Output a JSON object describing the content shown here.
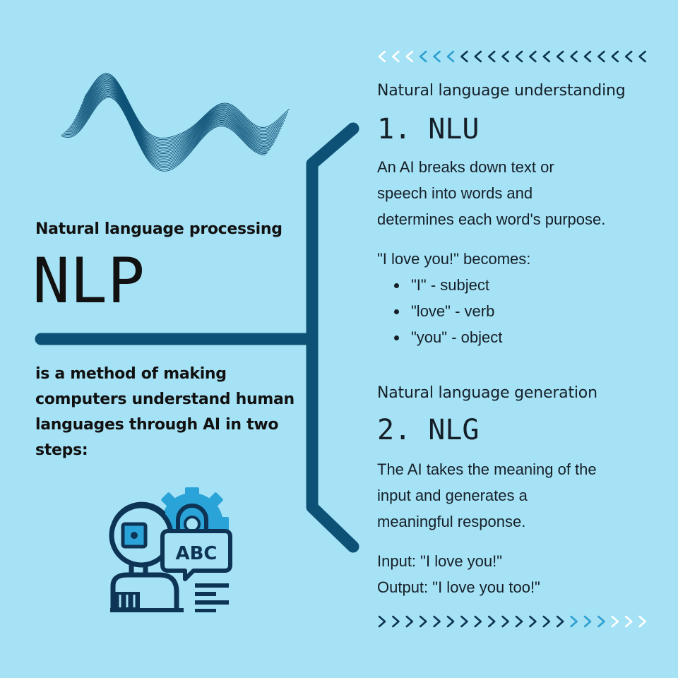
{
  "colors": {
    "background": "#a6e2f5",
    "brace": "#0d5176",
    "dark_navy": "#0e3455",
    "accent_blue": "#2aa3d8",
    "chevron_light": "#ffffff",
    "chevron_mid": "#2d9fd1"
  },
  "left": {
    "subtitle": "Natural language processing",
    "title": "NLP",
    "description": "is a method of making computers understand human languages through AI in two steps:"
  },
  "nlu": {
    "label": "Natural language understanding",
    "title": "1. NLU",
    "line1": "An AI breaks down text or",
    "line2": "speech into words and",
    "line3": "determines each word's purpose.",
    "example_intro": "\"I love you!\" becomes:",
    "bullets": [
      "\"I\" - subject",
      "\"love\" - verb",
      "\"you\" - object"
    ]
  },
  "nlg": {
    "label": "Natural language generation",
    "title": "2. NLG",
    "line1": "The AI takes the meaning of the",
    "line2": "input and generates a",
    "line3": "meaningful response.",
    "input_line": "Input: \"I love you!\"",
    "output_line": "Output: \"I love you too!\""
  },
  "illustration": {
    "speech_bubble_text": "ABC",
    "icon": "robot-with-gear-icon",
    "waveform": "waveform-graphic"
  },
  "decor": {
    "top_chevrons": "left-chevron-row",
    "bottom_chevrons": "right-chevron-row"
  }
}
